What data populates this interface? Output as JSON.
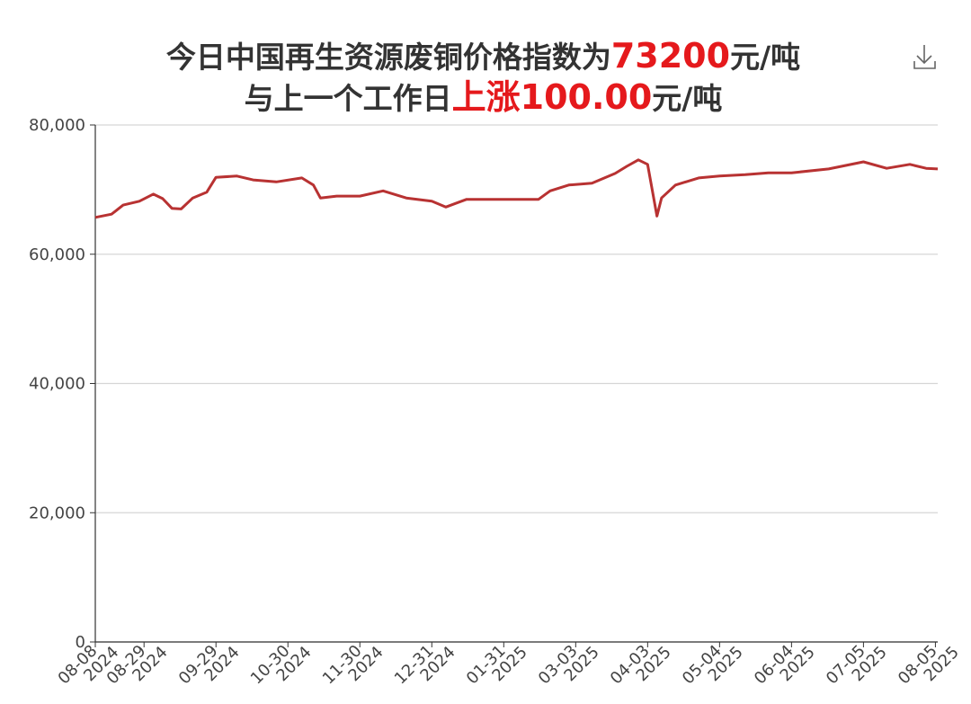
{
  "chart_data": {
    "type": "line",
    "title_lines": [
      [
        {
          "text": "今日中国再生资源废铜价格指数为",
          "highlight": false
        },
        {
          "text": "73200",
          "highlight": true
        },
        {
          "text": "元/吨",
          "highlight": false
        }
      ],
      [
        {
          "text": "与上一个工作日",
          "highlight": false
        },
        {
          "text": "上涨100.00",
          "highlight": true
        },
        {
          "text": "元/吨",
          "highlight": false
        }
      ]
    ],
    "highlight_color": "#e5191c",
    "x": [
      "2024-08-08",
      "2024-08-15",
      "2024-08-20",
      "2024-08-27",
      "2024-09-02",
      "2024-09-06",
      "2024-09-10",
      "2024-09-14",
      "2024-09-19",
      "2024-09-25",
      "2024-09-29",
      "2024-10-08",
      "2024-10-15",
      "2024-10-25",
      "2024-11-05",
      "2024-11-10",
      "2024-11-13",
      "2024-11-20",
      "2024-11-30",
      "2024-12-10",
      "2024-12-20",
      "2024-12-31",
      "2025-01-06",
      "2025-01-15",
      "2025-01-31",
      "2025-02-15",
      "2025-02-20",
      "2025-02-28",
      "2025-03-10",
      "2025-03-20",
      "2025-03-25",
      "2025-03-30",
      "2025-04-03",
      "2025-04-07",
      "2025-04-09",
      "2025-04-15",
      "2025-04-25",
      "2025-05-04",
      "2025-05-15",
      "2025-05-25",
      "2025-06-04",
      "2025-06-20",
      "2025-07-05",
      "2025-07-15",
      "2025-07-25",
      "2025-08-01",
      "2025-08-06"
    ],
    "series": [
      {
        "color": "#b83232",
        "values": [
          65700,
          66200,
          67600,
          68200,
          69300,
          68600,
          67100,
          67000,
          68700,
          69600,
          71900,
          72100,
          71500,
          71200,
          71800,
          70700,
          68700,
          69000,
          69000,
          69800,
          68700,
          68200,
          67300,
          68500,
          68500,
          68500,
          69800,
          70700,
          71000,
          72500,
          73600,
          74600,
          73900,
          65900,
          68700,
          70700,
          71800,
          72100,
          72300,
          72600,
          72600,
          73200,
          74300,
          73300,
          73900,
          73300,
          73200
        ]
      }
    ],
    "xlim": [
      "2024-08-08",
      "2025-08-06"
    ],
    "xticks": [
      {
        "value": "2024-08-08",
        "label": [
          "08-08",
          "2024"
        ]
      },
      {
        "value": "2024-08-29",
        "label": [
          "08-29",
          "2024"
        ]
      },
      {
        "value": "2024-09-29",
        "label": [
          "09-29",
          "2024"
        ]
      },
      {
        "value": "2024-10-30",
        "label": [
          "10-30",
          "2024"
        ]
      },
      {
        "value": "2024-11-30",
        "label": [
          "11-30",
          "2024"
        ]
      },
      {
        "value": "2024-12-31",
        "label": [
          "12-31",
          "2024"
        ]
      },
      {
        "value": "2025-01-31",
        "label": [
          "01-31",
          "2025"
        ]
      },
      {
        "value": "2025-03-03",
        "label": [
          "03-03",
          "2025"
        ]
      },
      {
        "value": "2025-04-03",
        "label": [
          "04-03",
          "2025"
        ]
      },
      {
        "value": "2025-05-04",
        "label": [
          "05-04",
          "2025"
        ]
      },
      {
        "value": "2025-06-04",
        "label": [
          "06-04",
          "2025"
        ]
      },
      {
        "value": "2025-07-05",
        "label": [
          "07-05",
          "2025"
        ]
      },
      {
        "value": "2025-08-05",
        "label": [
          "08-05",
          "2025"
        ]
      }
    ],
    "ylim": [
      0,
      80000
    ],
    "yticks": [
      0,
      {
        "value": 20000,
        "label": "20,000"
      },
      {
        "value": 40000,
        "label": "40,000"
      },
      {
        "value": 60000,
        "label": "60,000"
      },
      {
        "value": 80000,
        "label": "80,000"
      }
    ],
    "grid": true
  }
}
